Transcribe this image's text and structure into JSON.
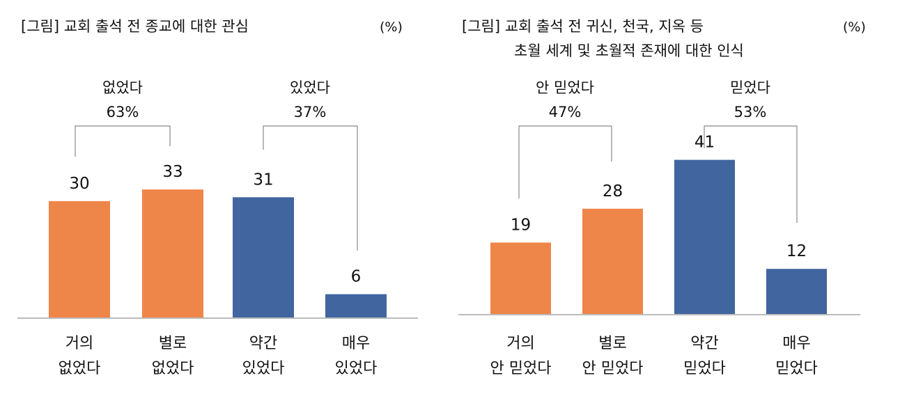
{
  "chart_data": [
    {
      "type": "bar",
      "title": "[그림] 교회 출석 전 종교에 대한 관심",
      "unit": "(%)",
      "categories": [
        [
          "거의",
          "없었다"
        ],
        [
          "별로",
          "없었다"
        ],
        [
          "약간",
          "있었다"
        ],
        [
          "매우",
          "있었다"
        ]
      ],
      "values": [
        30,
        33,
        31,
        6
      ],
      "colors": [
        "#EF8649",
        "#EF8649",
        "#41659E",
        "#41659E"
      ],
      "groups": [
        {
          "label": "없었다",
          "value": "63%"
        },
        {
          "label": "있었다",
          "value": "37%"
        }
      ]
    },
    {
      "type": "bar",
      "title": [
        "[그림] 교회 출석 전 귀신, 천국, 지옥 등",
        "초월 세계 및 초월적 존재에 대한 인식"
      ],
      "unit": "(%)",
      "categories": [
        [
          "거의",
          "안 믿었다"
        ],
        [
          "별로",
          "안 믿었다"
        ],
        [
          "약간",
          "믿었다"
        ],
        [
          "매우",
          "믿었다"
        ]
      ],
      "values": [
        19,
        28,
        41,
        12
      ],
      "colors": [
        "#EF8649",
        "#EF8649",
        "#41659E",
        "#41659E"
      ],
      "groups": [
        {
          "label": "안 믿었다",
          "value": "47%"
        },
        {
          "label": "믿었다",
          "value": "53%"
        }
      ]
    }
  ]
}
